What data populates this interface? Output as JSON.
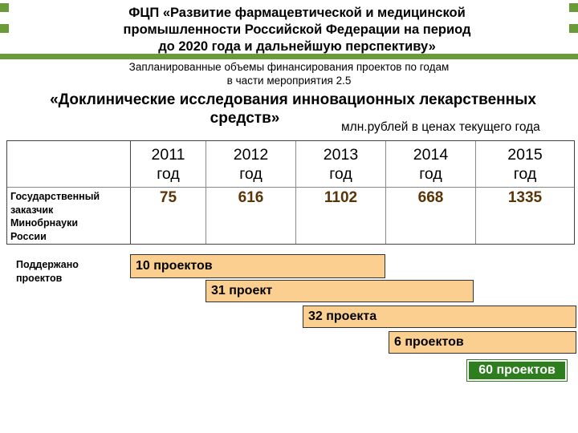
{
  "header": {
    "title_lines": [
      "ФЦП «Развитие фармацевтической и медицинской",
      "промышленности Российской Федерации на период",
      "до 2020 года и дальнейшую перспективу»"
    ],
    "subtitle_lines": [
      "Запланированные объемы финансирования проектов по годам",
      "в части мероприятия 2.5"
    ]
  },
  "section": {
    "title_lines": [
      "«Доклинические исследования инновационных лекарственных",
      "средств»"
    ],
    "units": "млн.рублей в ценах текущего года"
  },
  "table": {
    "years": [
      {
        "year": "2011",
        "word": "год"
      },
      {
        "year": "2012",
        "word": "год"
      },
      {
        "year": "2013",
        "word": "год"
      },
      {
        "year": "2014",
        "word": "год"
      },
      {
        "year": "2015",
        "word": "год"
      }
    ],
    "row_label_lines": [
      "Государственный",
      "заказчик",
      "Минобрнауки",
      "России"
    ],
    "values": [
      "75",
      "616",
      "1102",
      "668",
      "1335"
    ]
  },
  "projects": {
    "label_lines": [
      "Поддержано",
      "проектов"
    ],
    "bars": [
      "10 проектов",
      "31 проект",
      "32 проекта",
      "6 проектов"
    ],
    "total": "60 проектов"
  },
  "colors": {
    "accent_green": "#6b9a3a",
    "bar_fill": "#fbcf8f",
    "total_fill": "#2e7d1f",
    "value_text": "#5b3406"
  }
}
